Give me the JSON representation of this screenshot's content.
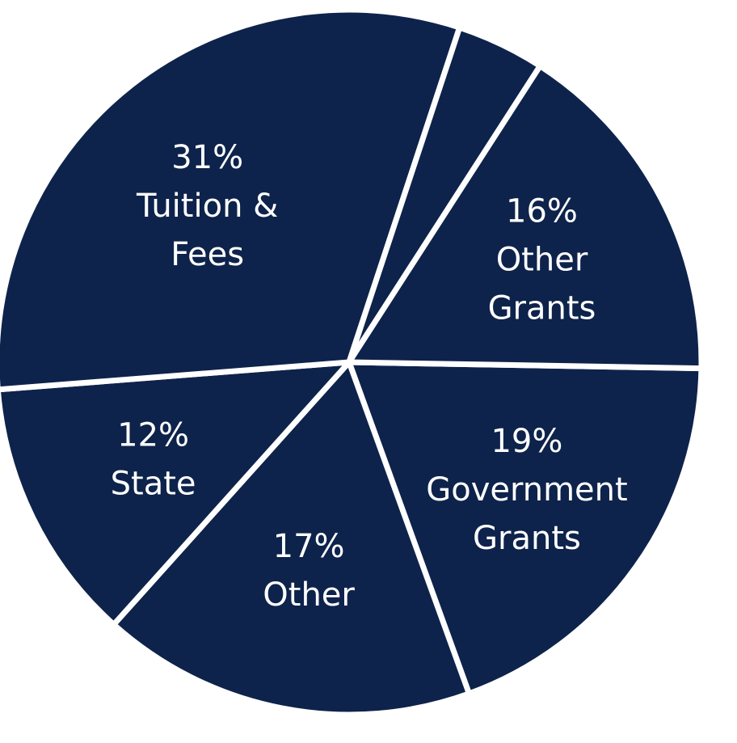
{
  "chart_data": {
    "type": "pie",
    "title": "",
    "colors": {
      "slice": "#0e234b",
      "separator": "#ffffff",
      "label": "#ffffff"
    },
    "slices": [
      {
        "value": 19,
        "label_lines": [
          "19%",
          "Government",
          "Grants"
        ]
      },
      {
        "value": 17,
        "label_lines": [
          "17%",
          "Other"
        ]
      },
      {
        "value": 12,
        "label_lines": [
          "12%",
          "State"
        ]
      },
      {
        "value": 31,
        "label_lines": [
          "31%",
          "Tuition &",
          "Fees"
        ]
      },
      {
        "value": 4,
        "label_lines": []
      },
      {
        "value": 16,
        "label_lines": [
          "16%",
          "Other",
          "Grants"
        ]
      }
    ]
  }
}
